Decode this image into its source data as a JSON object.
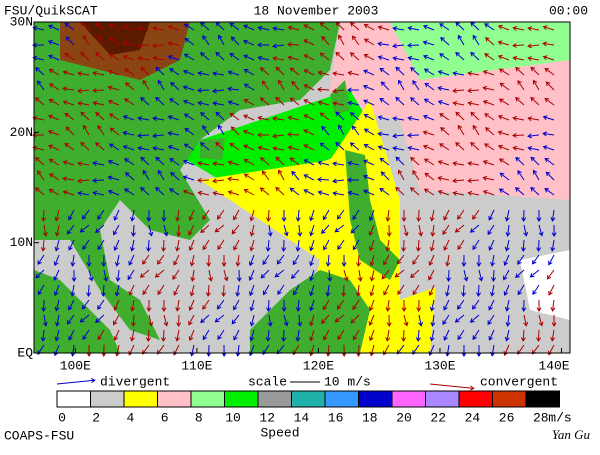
{
  "header": {
    "left": "FSU/QuikSCAT",
    "center": "18 November 2003",
    "right": "00:00"
  },
  "map": {
    "xlim": [
      96.6,
      140.7
    ],
    "ylim": [
      0,
      30
    ],
    "xticks": [
      {
        "value": 100,
        "label": "100E"
      },
      {
        "value": 110,
        "label": "110E"
      },
      {
        "value": 120,
        "label": "120E"
      },
      {
        "value": 130,
        "label": "130E"
      },
      {
        "value": 140,
        "label": "140E"
      }
    ],
    "yticks": [
      {
        "value": 0,
        "label": "EQ"
      },
      {
        "value": 10,
        "label": "10N"
      },
      {
        "value": 20,
        "label": "20N"
      },
      {
        "value": 30,
        "label": "30N"
      }
    ]
  },
  "legend": {
    "divergent": "divergent",
    "divergent_color": "#0000cc",
    "scale": "scale",
    "scale_value": "10 m/s",
    "convergent": "convergent",
    "convergent_color": "#aa0000"
  },
  "colorbar": {
    "labels": [
      0,
      2,
      4,
      6,
      8,
      10,
      12,
      14,
      16,
      18,
      20,
      22,
      24,
      26,
      28
    ],
    "colors": [
      "#ffffff",
      "#cccccc",
      "#ffff00",
      "#ffc0c8",
      "#90ff90",
      "#00ee00",
      "#999999",
      "#20b2aa",
      "#3399ff",
      "#0000cc",
      "#ff66ff",
      "#aa88ff",
      "#ff0000",
      "#cc3300",
      "#000000"
    ],
    "unit": "m/s",
    "title": "Speed"
  },
  "footer": {
    "left": "COAPS-FSU",
    "right": "Yan Gu"
  }
}
